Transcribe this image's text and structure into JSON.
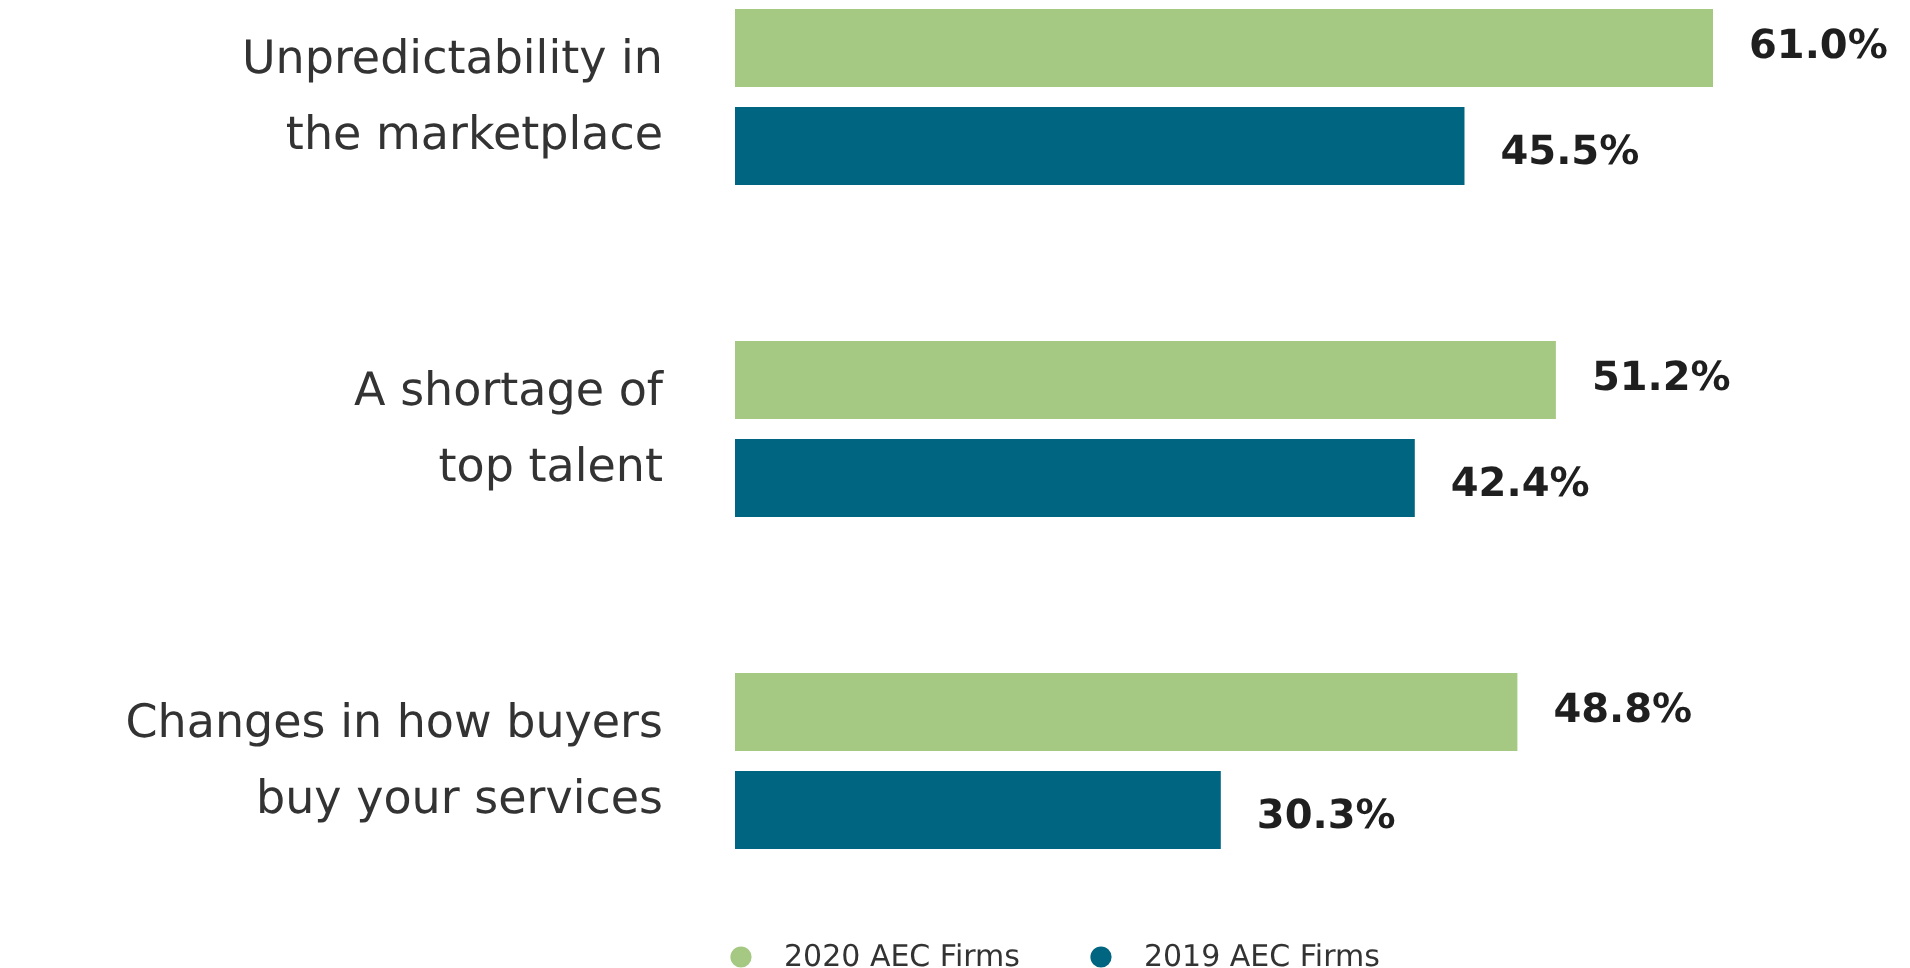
{
  "chart_data": {
    "type": "bar",
    "orientation": "horizontal",
    "categories": [
      "Unpredictability in\nthe marketplace",
      "A shortage of\ntop talent",
      "Changes in how buyers\nbuy your services"
    ],
    "series": [
      {
        "name": "2020 AEC Firms",
        "color": "#a5c882",
        "values": [
          61.0,
          51.2,
          48.8
        ],
        "value_labels": [
          "61.0%",
          "51.2%",
          "48.8%"
        ]
      },
      {
        "name": "2019 AEC Firms",
        "color": "#006580",
        "values": [
          45.5,
          42.4,
          30.3
        ],
        "value_labels": [
          "45.5%",
          "42.4%",
          "30.3%"
        ]
      }
    ],
    "legend": "bottom"
  }
}
